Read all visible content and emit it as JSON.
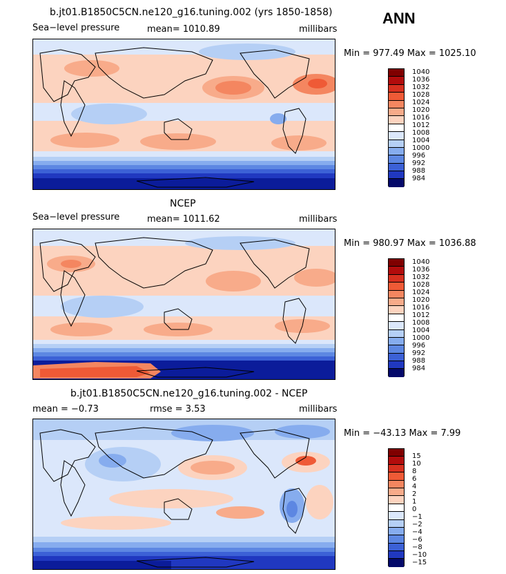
{
  "header": {
    "season": "ANN"
  },
  "panels": [
    {
      "title": "b.jt01.B1850C5CN.ne120_g16.tuning.002 (yrs 1850-1858)",
      "left_label": "Sea−level pressure",
      "center_label": "mean= 1010.89",
      "units": "millibars",
      "stats": "Min = 977.49 Max = 1025.10",
      "legend": [
        "1040",
        "1036",
        "1032",
        "1028",
        "1024",
        "1020",
        "1016",
        "1012",
        "1008",
        "1004",
        "1000",
        "996",
        "992",
        "988",
        "984"
      ]
    },
    {
      "title": "NCEP",
      "left_label": "Sea−level pressure",
      "center_label": "mean= 1011.62",
      "units": "millibars",
      "stats": "Min = 980.97 Max = 1036.88",
      "legend": [
        "1040",
        "1036",
        "1032",
        "1028",
        "1024",
        "1020",
        "1016",
        "1012",
        "1008",
        "1004",
        "1000",
        "996",
        "992",
        "988",
        "984"
      ]
    },
    {
      "title": "b.jt01.B1850C5CN.ne120_g16.tuning.002 - NCEP",
      "left_label": "mean =   −0.73",
      "center_label": "rmse =    3.53",
      "units": "millibars",
      "stats": "Min = −43.13 Max =    7.99",
      "legend": [
        "15",
        "10",
        "8",
        "6",
        "4",
        "2",
        "1",
        "0",
        "−1",
        "−2",
        "−4",
        "−6",
        "−8",
        "−10",
        "−15"
      ]
    }
  ],
  "colors": {
    "scale": [
      "#7f0000",
      "#b20c0c",
      "#d7301f",
      "#ef5a36",
      "#f48660",
      "#f8ab8a",
      "#fcd3bf",
      "#ffffff",
      "#dbe7fb",
      "#b5cff5",
      "#86acee",
      "#5d87e2",
      "#3c61d6",
      "#2038c0",
      "#0b1c9a",
      "#04096a"
    ],
    "land_line": "#000000"
  }
}
